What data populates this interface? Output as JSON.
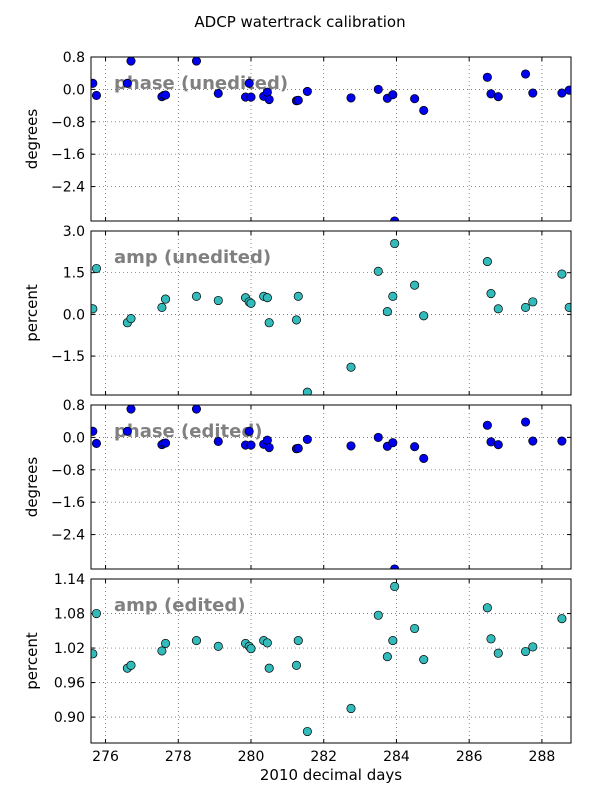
{
  "figure": {
    "title": "ADCP watertrack calibration"
  },
  "colors": {
    "phase_marker": "#0000ee",
    "amp_marker": "#33bbbb",
    "annotation": "#808080",
    "grid": "#555555"
  },
  "chart_data": [
    {
      "type": "scatter",
      "annotation": "phase (unedited)",
      "xlabel": "",
      "ylabel": "degrees",
      "xlim": [
        275.6,
        288.8
      ],
      "ylim": [
        -3.25,
        0.8
      ],
      "yticks": [
        "0.8",
        "0.0",
        "−0.8",
        "−1.6",
        "−2.4"
      ],
      "ytick_values": [
        0.8,
        0.0,
        -0.8,
        -1.6,
        -2.4
      ],
      "xticks": [],
      "grid": true,
      "series": [
        {
          "x": [
            275.65,
            275.75,
            276.6,
            276.7,
            277.55,
            277.6,
            277.65,
            278.5,
            279.1,
            279.85,
            279.95,
            280.0,
            280.35,
            280.45,
            280.5,
            281.25,
            281.3,
            281.55,
            282.75,
            283.5,
            283.75,
            283.9,
            283.95,
            284.5,
            284.75,
            286.5,
            286.6,
            286.8,
            287.55,
            287.75,
            288.55,
            288.75
          ],
          "y": [
            0.15,
            -0.15,
            0.15,
            0.7,
            -0.18,
            -0.15,
            -0.14,
            0.7,
            -0.1,
            -0.19,
            0.15,
            -0.19,
            -0.17,
            -0.07,
            -0.25,
            -0.28,
            -0.27,
            -0.05,
            -0.21,
            0.0,
            -0.22,
            -0.13,
            -3.25,
            -0.23,
            -0.52,
            0.3,
            -0.11,
            -0.18,
            0.38,
            -0.09,
            -0.09,
            -0.02
          ]
        }
      ]
    },
    {
      "type": "scatter",
      "annotation": "amp (unedited)",
      "xlabel": "",
      "ylabel": "percent",
      "xlim": [
        275.6,
        288.8
      ],
      "ylim": [
        -2.9,
        3.0
      ],
      "yticks": [
        "3.0",
        "1.5",
        "0.0",
        "−1.5"
      ],
      "ytick_values": [
        3.0,
        1.5,
        0.0,
        -1.5
      ],
      "xticks": [],
      "grid": true,
      "series": [
        {
          "x": [
            275.65,
            275.75,
            276.6,
            276.7,
            277.55,
            277.65,
            278.5,
            279.1,
            279.85,
            279.95,
            280.0,
            280.35,
            280.45,
            280.5,
            281.25,
            281.3,
            281.55,
            282.75,
            283.5,
            283.75,
            283.9,
            283.95,
            284.5,
            284.75,
            286.5,
            286.6,
            286.8,
            287.55,
            287.75,
            288.55,
            288.75
          ],
          "y": [
            0.2,
            1.65,
            -0.3,
            -0.15,
            0.25,
            0.55,
            0.65,
            0.5,
            0.6,
            0.45,
            0.4,
            0.65,
            0.6,
            -0.3,
            -0.2,
            0.65,
            -2.8,
            -1.9,
            1.55,
            0.1,
            0.65,
            2.55,
            1.05,
            -0.05,
            1.9,
            0.75,
            0.2,
            0.25,
            0.45,
            1.45,
            0.25
          ]
        }
      ]
    },
    {
      "type": "scatter",
      "annotation": "phase (edited)",
      "xlabel": "",
      "ylabel": "degrees",
      "xlim": [
        275.6,
        288.8
      ],
      "ylim": [
        -3.25,
        0.8
      ],
      "yticks": [
        "0.8",
        "0.0",
        "−0.8",
        "−1.6",
        "−2.4"
      ],
      "ytick_values": [
        0.8,
        0.0,
        -0.8,
        -1.6,
        -2.4
      ],
      "xticks": [],
      "grid": true,
      "series": [
        {
          "x": [
            275.65,
            275.75,
            276.6,
            276.7,
            277.55,
            277.6,
            277.65,
            278.5,
            279.1,
            279.85,
            279.95,
            280.0,
            280.35,
            280.45,
            280.5,
            281.25,
            281.3,
            281.55,
            282.75,
            283.5,
            283.75,
            283.9,
            283.95,
            284.5,
            284.75,
            286.5,
            286.6,
            286.8,
            287.55,
            287.75,
            288.55
          ],
          "y": [
            0.15,
            -0.15,
            0.15,
            0.7,
            -0.18,
            -0.15,
            -0.14,
            0.7,
            -0.1,
            -0.19,
            0.15,
            -0.19,
            -0.17,
            -0.07,
            -0.25,
            -0.28,
            -0.27,
            -0.05,
            -0.21,
            0.0,
            -0.22,
            -0.13,
            -3.25,
            -0.23,
            -0.52,
            0.3,
            -0.11,
            -0.18,
            0.38,
            -0.09,
            -0.09
          ]
        }
      ]
    },
    {
      "type": "scatter",
      "annotation": "amp (edited)",
      "xlabel": "2010 decimal days",
      "ylabel": "percent",
      "xlim": [
        275.6,
        288.8
      ],
      "ylim": [
        0.855,
        1.14
      ],
      "yticks": [
        "1.14",
        "1.08",
        "1.02",
        "0.96",
        "0.90"
      ],
      "ytick_values": [
        1.14,
        1.08,
        1.02,
        0.96,
        0.9
      ],
      "xticks": [
        "276",
        "278",
        "280",
        "282",
        "284",
        "286",
        "288"
      ],
      "xtick_values": [
        276,
        278,
        280,
        282,
        284,
        286,
        288
      ],
      "grid": true,
      "series": [
        {
          "x": [
            275.65,
            275.75,
            276.6,
            276.7,
            277.55,
            277.65,
            278.5,
            279.1,
            279.85,
            279.95,
            280.0,
            280.35,
            280.45,
            280.5,
            281.25,
            281.3,
            281.55,
            282.75,
            283.5,
            283.75,
            283.9,
            283.95,
            284.5,
            284.75,
            286.5,
            286.6,
            286.8,
            287.55,
            287.75,
            288.55
          ],
          "y": [
            1.01,
            1.08,
            0.985,
            0.99,
            1.015,
            1.028,
            1.033,
            1.023,
            1.028,
            1.023,
            1.019,
            1.033,
            1.029,
            0.985,
            0.99,
            1.033,
            0.875,
            0.915,
            1.077,
            1.005,
            1.033,
            1.127,
            1.054,
            1.0,
            1.09,
            1.036,
            1.011,
            1.014,
            1.022,
            1.071
          ]
        }
      ]
    }
  ]
}
